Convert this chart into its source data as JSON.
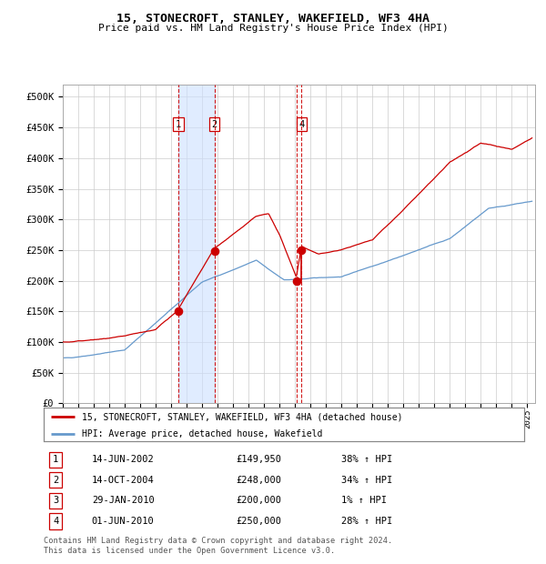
{
  "title": "15, STONECROFT, STANLEY, WAKEFIELD, WF3 4HA",
  "subtitle": "Price paid vs. HM Land Registry's House Price Index (HPI)",
  "footnote": "Contains HM Land Registry data © Crown copyright and database right 2024.\nThis data is licensed under the Open Government Licence v3.0.",
  "legend_line1": "15, STONECROFT, STANLEY, WAKEFIELD, WF3 4HA (detached house)",
  "legend_line2": "HPI: Average price, detached house, Wakefield",
  "transactions": [
    {
      "num": 1,
      "date": "14-JUN-2002",
      "price": 149950,
      "pct": "38%",
      "dir": "↑",
      "year": 2002.45
    },
    {
      "num": 2,
      "date": "14-OCT-2004",
      "price": 248000,
      "pct": "34%",
      "dir": "↑",
      "year": 2004.79
    },
    {
      "num": 3,
      "date": "29-JAN-2010",
      "price": 200000,
      "pct": "1%",
      "dir": "↑",
      "year": 2010.08
    },
    {
      "num": 4,
      "date": "01-JUN-2010",
      "price": 250000,
      "pct": "28%",
      "dir": "↑",
      "year": 2010.42
    }
  ],
  "hpi_color": "#6699cc",
  "price_color": "#cc0000",
  "bg_color": "#ffffff",
  "grid_color": "#cccccc",
  "shade_color": "#cce0ff",
  "ylim": [
    0,
    520000
  ],
  "xlim": [
    1995.0,
    2025.5
  ],
  "yticks": [
    0,
    50000,
    100000,
    150000,
    200000,
    250000,
    300000,
    350000,
    400000,
    450000,
    500000
  ]
}
